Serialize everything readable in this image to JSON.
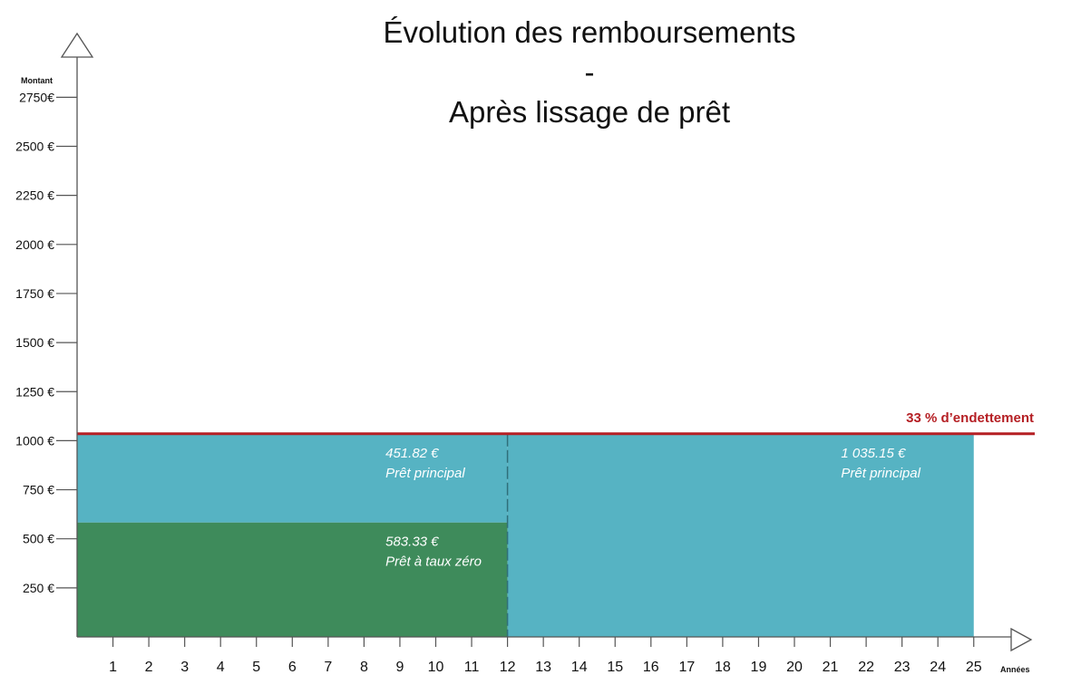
{
  "title": {
    "line1": "Évolution des remboursements",
    "line2": "-",
    "line3": "Après lissage de prêt"
  },
  "colors": {
    "principal": "#56b3c3",
    "taux_zero": "#3e8b5b",
    "limit_line": "#b51f24",
    "axis": "#555555"
  },
  "chart_data": {
    "type": "area",
    "title": "Évolution des remboursements - Après lissage de prêt",
    "xlabel": "Années",
    "ylabel": "Montant",
    "x_ticks": [
      1,
      2,
      3,
      4,
      5,
      6,
      7,
      8,
      9,
      10,
      11,
      12,
      13,
      14,
      15,
      16,
      17,
      18,
      19,
      20,
      21,
      22,
      23,
      24,
      25
    ],
    "y_ticks": [
      {
        "value": 250,
        "label": "250 €"
      },
      {
        "value": 500,
        "label": "500 €"
      },
      {
        "value": 750,
        "label": "750 €"
      },
      {
        "value": 1000,
        "label": "1000 €"
      },
      {
        "value": 1250,
        "label": "1250 €"
      },
      {
        "value": 1500,
        "label": "1500 €"
      },
      {
        "value": 1750,
        "label": "1750 €"
      },
      {
        "value": 2000,
        "label": "2000 €"
      },
      {
        "value": 2250,
        "label": "2250 €"
      },
      {
        "value": 2500,
        "label": "2500 €"
      },
      {
        "value": 2750,
        "label": "2750€"
      }
    ],
    "series": [
      {
        "key": "taux_zero_p1",
        "from": 0,
        "to": 12,
        "bottom": 0,
        "top": 583.33,
        "color": "#3e8b5b",
        "value_label": "583.33 €",
        "name_label": "Prêt à taux zéro",
        "label_x": 8.6
      },
      {
        "key": "principal_p1",
        "from": 0,
        "to": 12,
        "bottom": 583.33,
        "top": 1035.15,
        "color": "#56b3c3",
        "value_label": "451.82 €",
        "name_label": "Prêt principal",
        "label_x": 8.6
      },
      {
        "key": "principal_p2",
        "from": 12,
        "to": 25,
        "bottom": 0,
        "top": 1035.15,
        "color": "#56b3c3",
        "value_label": "1 035.15 €",
        "name_label": "Prêt principal",
        "label_x": 21.3
      }
    ],
    "limit": {
      "value": 1035.15,
      "label": "33 % d’endettement",
      "color": "#b51f24"
    },
    "ylim": [
      0,
      2850
    ],
    "xlim": [
      0,
      26
    ],
    "grid": false,
    "legend": "none"
  }
}
